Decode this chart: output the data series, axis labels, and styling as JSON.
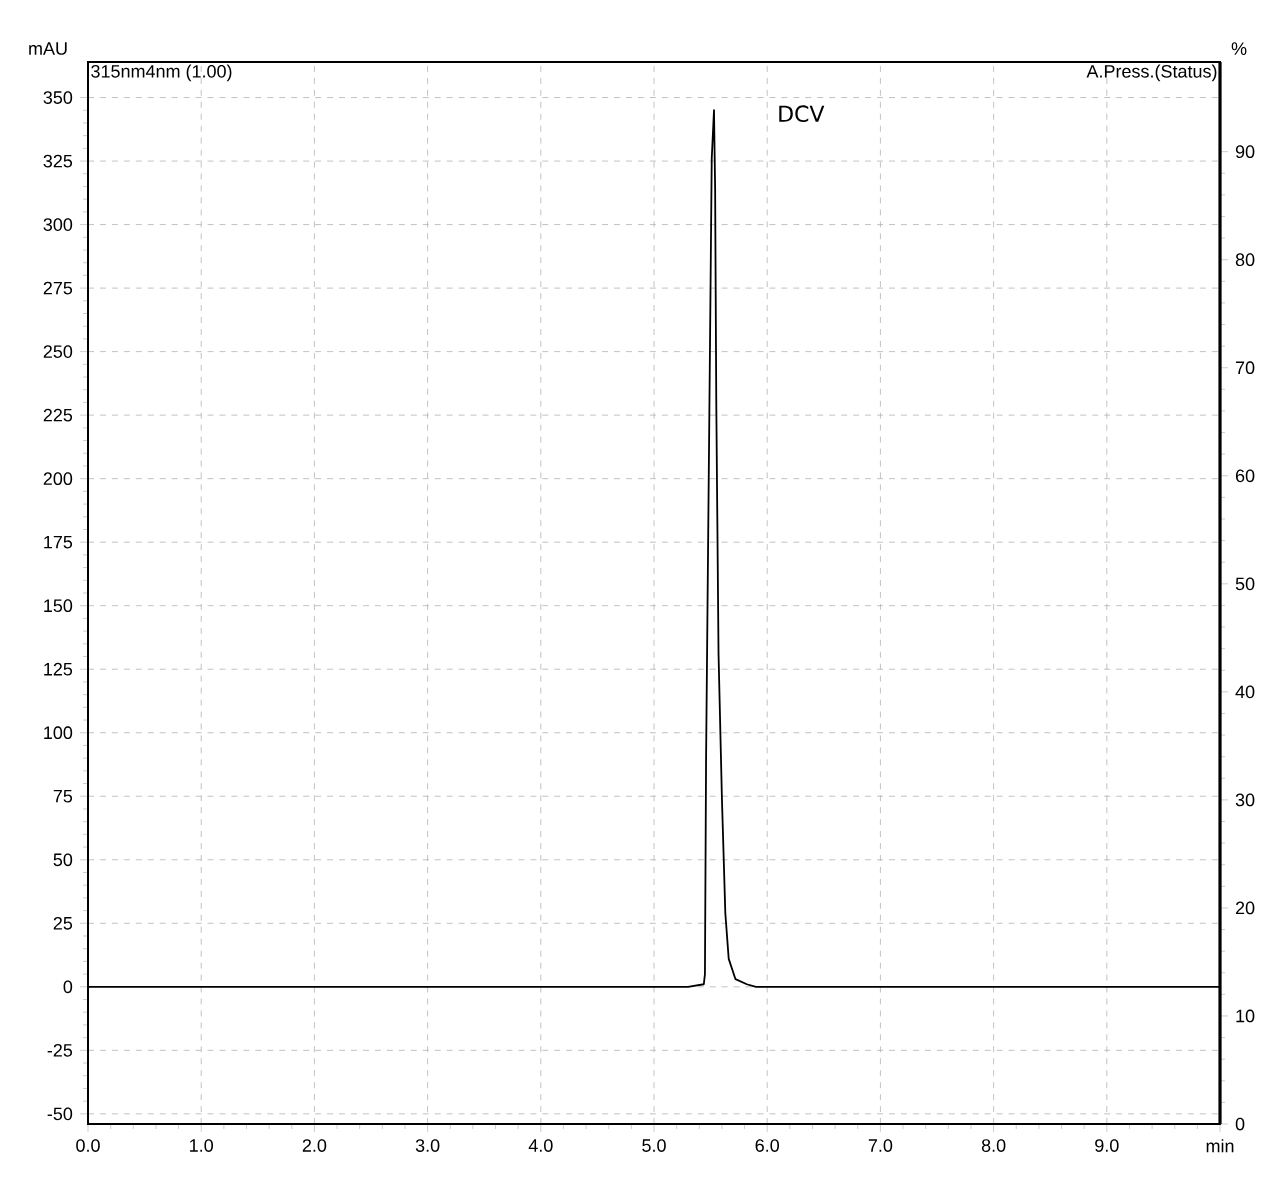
{
  "chart_data": {
    "type": "line",
    "ylabel": "mAU",
    "y2label": "%",
    "annotations": [
      "315nm4nm (1.00)",
      "A.Press.(Status)",
      {
        "text": "DCV",
        "x": 5.53,
        "y": 345
      }
    ],
    "xlim": [
      0,
      10
    ],
    "xticks": [
      {
        "value": 0,
        "label": "0.0"
      },
      {
        "value": 1,
        "label": "1.0"
      },
      {
        "value": 2,
        "label": "2.0"
      },
      {
        "value": 3,
        "label": "3.0"
      },
      {
        "value": 4,
        "label": "4.0"
      },
      {
        "value": 5,
        "label": "5.0"
      },
      {
        "value": 6,
        "label": "6.0"
      },
      {
        "value": 7,
        "label": "7.0"
      },
      {
        "value": 8,
        "label": "8.0"
      },
      {
        "value": 9,
        "label": "9.0"
      },
      {
        "value": 10,
        "label": "min"
      }
    ],
    "ylim": [
      -54,
      364
    ],
    "yticks": [
      -50,
      -25,
      0,
      25,
      50,
      75,
      100,
      125,
      150,
      175,
      200,
      225,
      250,
      275,
      300,
      325,
      350
    ],
    "y2lim": [
      0,
      98.3
    ],
    "y2ticks": [
      0,
      10,
      20,
      30,
      40,
      50,
      60,
      70,
      80,
      90
    ],
    "grid": true,
    "series": [
      {
        "color": "#000000",
        "x": [
          0,
          5.3,
          5.44,
          5.45,
          5.46,
          5.49,
          5.51,
          5.53,
          5.54,
          5.55,
          5.57,
          5.6,
          5.63,
          5.66,
          5.72,
          5.82,
          5.9,
          10
        ],
        "values": [
          0,
          0,
          1,
          5,
          90,
          231,
          326,
          345,
          314,
          231,
          131,
          74,
          29,
          11,
          3,
          1,
          0,
          0
        ]
      }
    ]
  }
}
